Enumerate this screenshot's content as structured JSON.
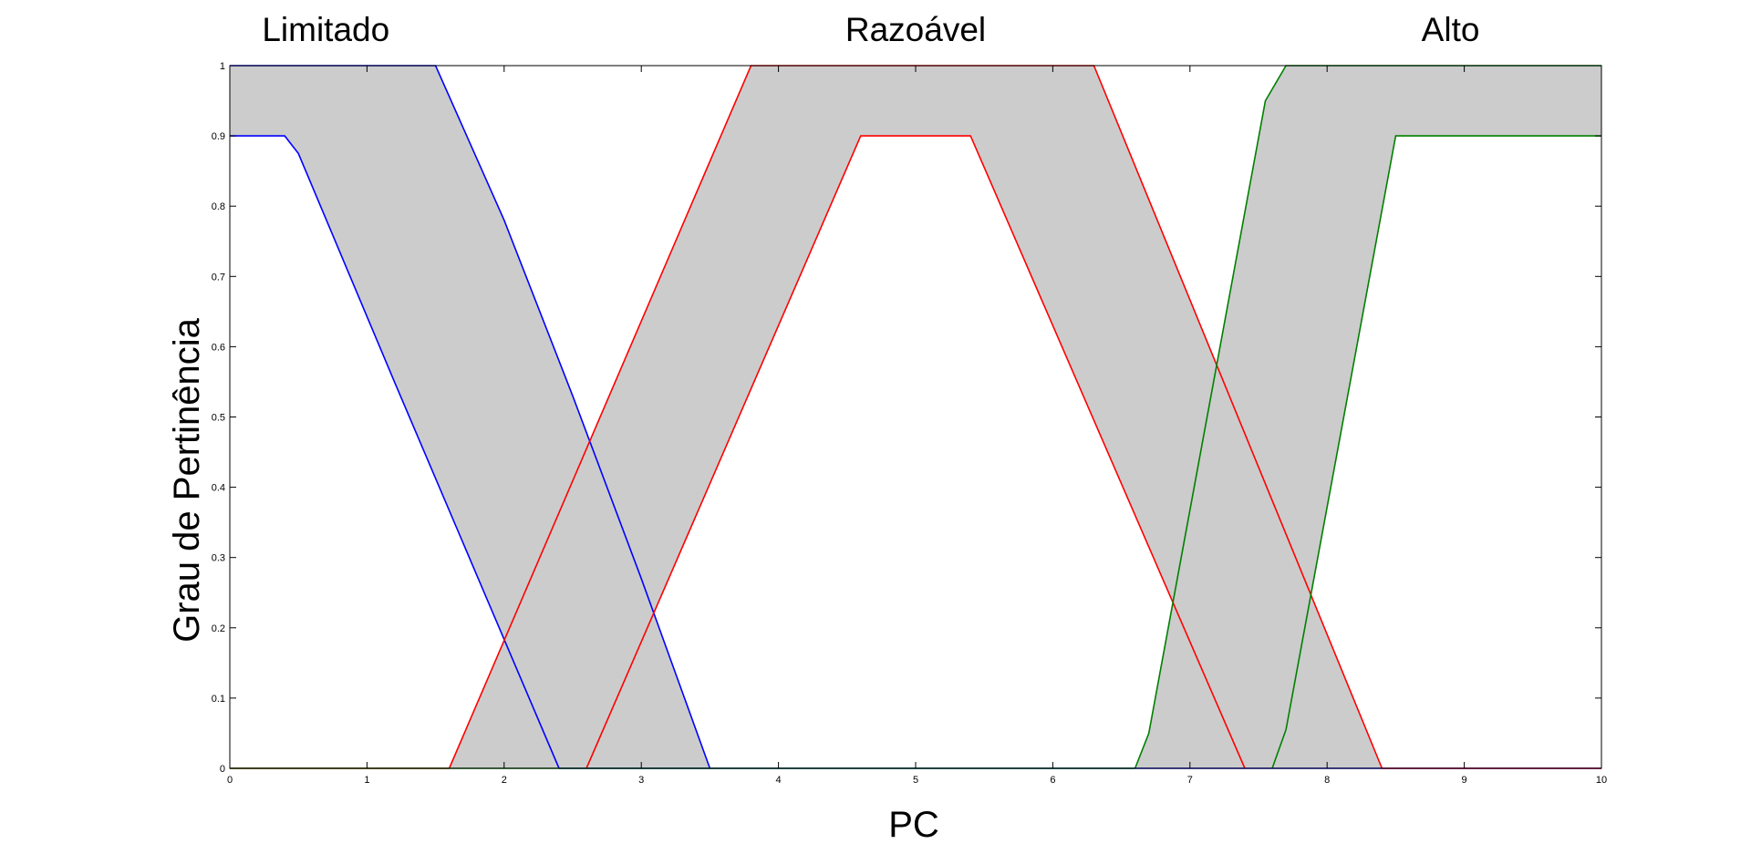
{
  "chart_data": {
    "type": "area",
    "title": "",
    "xlabel": "PC",
    "ylabel": "Grau de Pertinência",
    "xlim": [
      0,
      10
    ],
    "ylim": [
      0,
      1
    ],
    "xticks": [
      "0",
      "1",
      "2",
      "3",
      "4",
      "5",
      "6",
      "7",
      "8",
      "9",
      "10"
    ],
    "yticks": [
      "0",
      "0.1",
      "0.2",
      "0.3",
      "0.4",
      "0.5",
      "0.6",
      "0.7",
      "0.8",
      "0.9",
      "1"
    ],
    "grid": false,
    "fill_color": "#cccccc",
    "set_labels": [
      {
        "text": "Limitado",
        "x": 0.7
      },
      {
        "text": "Razoável",
        "x": 5.0
      },
      {
        "text": "Alto",
        "x": 8.9
      }
    ],
    "series": [
      {
        "set": "Limitado",
        "color": "#0000ff",
        "upper": [
          [
            0,
            1
          ],
          [
            1.5,
            1
          ],
          [
            2.0,
            0.78
          ],
          [
            2.5,
            0.53
          ],
          [
            3.0,
            0.27
          ],
          [
            3.5,
            0
          ]
        ],
        "lower": [
          [
            0,
            0.9
          ],
          [
            0.4,
            0.9
          ],
          [
            0.5,
            0.875
          ],
          [
            1.2,
            0.55
          ],
          [
            2.4,
            0
          ]
        ]
      },
      {
        "set": "Razoável",
        "color": "#ff0000",
        "upper": [
          [
            1.6,
            0
          ],
          [
            3.8,
            1
          ],
          [
            6.3,
            1
          ],
          [
            8.4,
            0
          ]
        ],
        "lower": [
          [
            2.6,
            0
          ],
          [
            4.6,
            0.9
          ],
          [
            5.4,
            0.9
          ],
          [
            7.4,
            0
          ]
        ]
      },
      {
        "set": "Alto",
        "color": "#008000",
        "upper": [
          [
            6.6,
            0
          ],
          [
            6.7,
            0.05
          ],
          [
            7.55,
            0.95
          ],
          [
            7.7,
            1
          ],
          [
            10,
            1
          ]
        ],
        "lower": [
          [
            7.6,
            0
          ],
          [
            7.7,
            0.055
          ],
          [
            8.5,
            0.9
          ],
          [
            10,
            0.9
          ]
        ]
      }
    ]
  }
}
